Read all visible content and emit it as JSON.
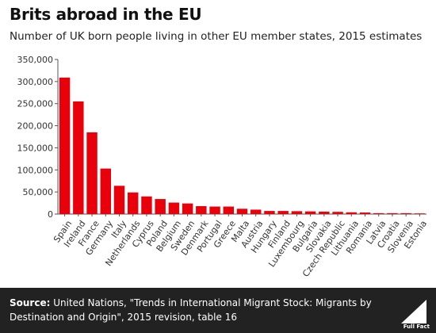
{
  "header": {
    "title": "Brits abroad in the EU",
    "subtitle": "Number of UK born people living in other EU member states, 2015 estimates"
  },
  "footer": {
    "source_label": "Source:",
    "source_text": " United Nations, \"Trends in International Migrant Stock: Migrants by Destination and Origin\", 2015 revision, table 16",
    "logo_text": "Full Fact"
  },
  "colors": {
    "bar": "#e8000b",
    "footer_bg": "#222222"
  },
  "chart_data": {
    "type": "bar",
    "title": "",
    "xlabel": "",
    "ylabel": "",
    "ylim": [
      0,
      350000
    ],
    "yticks": [
      0,
      50000,
      100000,
      150000,
      200000,
      250000,
      300000,
      350000
    ],
    "ytick_labels": [
      "0",
      "50,000",
      "100,000",
      "150,000",
      "200,000",
      "250,000",
      "300,000",
      "350,000"
    ],
    "grid": false,
    "categories": [
      "Spain",
      "Ireland",
      "France",
      "Germany",
      "Italy",
      "Netherlands",
      "Cyprus",
      "Poland",
      "Belgium",
      "Sweden",
      "Denmark",
      "Portugal",
      "Greece",
      "Malta",
      "Austria",
      "Hungary",
      "Finland",
      "Luxembourg",
      "Bulgaria",
      "Slovakia",
      "Czech Republic",
      "Lithuania",
      "Romania",
      "Latvia",
      "Croatia",
      "Slovenia",
      "Estonia"
    ],
    "values": [
      309000,
      255000,
      185000,
      103000,
      64000,
      49000,
      40000,
      34000,
      26000,
      24000,
      18000,
      17000,
      17000,
      12000,
      10000,
      7000,
      7000,
      6500,
      6000,
      5500,
      5000,
      4000,
      3500,
      2000,
      2000,
      2000,
      1500
    ]
  }
}
